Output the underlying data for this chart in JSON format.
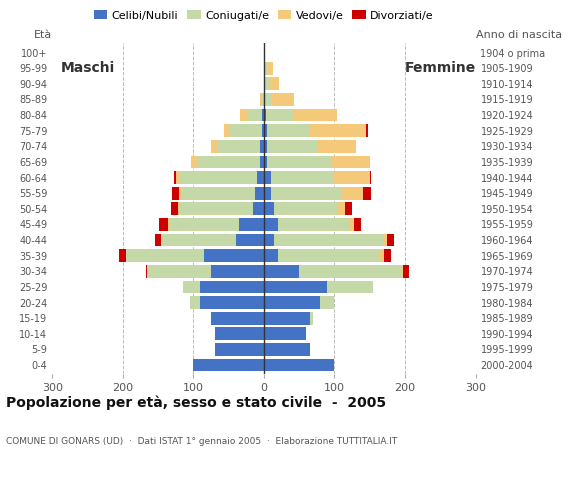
{
  "age_groups": [
    "0-4",
    "5-9",
    "10-14",
    "15-19",
    "20-24",
    "25-29",
    "30-34",
    "35-39",
    "40-44",
    "45-49",
    "50-54",
    "55-59",
    "60-64",
    "65-69",
    "70-74",
    "75-79",
    "80-84",
    "85-89",
    "90-94",
    "95-99",
    "100+"
  ],
  "birth_years": [
    "2000-2004",
    "1995-1999",
    "1990-1994",
    "1985-1989",
    "1980-1984",
    "1975-1979",
    "1970-1974",
    "1965-1969",
    "1960-1964",
    "1955-1959",
    "1950-1954",
    "1945-1949",
    "1940-1944",
    "1935-1939",
    "1930-1934",
    "1925-1929",
    "1920-1924",
    "1915-1919",
    "1910-1914",
    "1905-1909",
    "1904 o prima"
  ],
  "males": {
    "celibe": [
      100,
      70,
      70,
      75,
      90,
      90,
      75,
      85,
      40,
      35,
      15,
      12,
      10,
      5,
      5,
      3,
      2,
      0,
      0,
      0,
      0
    ],
    "coniugato": [
      0,
      0,
      0,
      0,
      15,
      25,
      90,
      110,
      105,
      100,
      105,
      105,
      110,
      90,
      60,
      45,
      20,
      3,
      0,
      0,
      0
    ],
    "vedovo": [
      0,
      0,
      0,
      0,
      0,
      0,
      0,
      1,
      1,
      1,
      2,
      3,
      5,
      8,
      10,
      8,
      12,
      2,
      0,
      0,
      0
    ],
    "divorziato": [
      0,
      0,
      0,
      0,
      0,
      0,
      2,
      10,
      8,
      12,
      10,
      10,
      2,
      0,
      0,
      0,
      0,
      0,
      0,
      0,
      0
    ]
  },
  "females": {
    "nubile": [
      100,
      65,
      60,
      65,
      80,
      90,
      50,
      20,
      15,
      20,
      15,
      10,
      10,
      5,
      5,
      5,
      3,
      2,
      2,
      0,
      0
    ],
    "coniugata": [
      0,
      0,
      0,
      5,
      20,
      65,
      145,
      145,
      155,
      100,
      90,
      100,
      90,
      90,
      70,
      60,
      40,
      10,
      5,
      5,
      0
    ],
    "vedova": [
      0,
      0,
      0,
      0,
      0,
      0,
      2,
      5,
      5,
      8,
      10,
      30,
      50,
      55,
      55,
      80,
      60,
      30,
      15,
      8,
      2
    ],
    "divorziata": [
      0,
      0,
      0,
      0,
      0,
      0,
      8,
      10,
      10,
      10,
      10,
      12,
      2,
      0,
      0,
      2,
      0,
      0,
      0,
      0,
      0
    ]
  },
  "colors": {
    "celibe": "#4472c4",
    "coniugato": "#c5d9a8",
    "vedovo": "#f5c97a",
    "divorziato": "#cc0000"
  },
  "xlim": 300,
  "title": "Popolazione per età, sesso e stato civile  -  2005",
  "subtitle": "COMUNE DI GONARS (UD)  ·  Dati ISTAT 1° gennaio 2005  ·  Elaborazione TUTTITALIA.IT",
  "legend_labels": [
    "Celibi/Nubili",
    "Coniugati/e",
    "Vedovi/e",
    "Divorziati/e"
  ],
  "background_color": "#ffffff",
  "bar_height": 0.82,
  "maschi_label": "Maschi",
  "femmine_label": "Femmine",
  "eta_label": "Età",
  "nascita_label": "Anno di nascita"
}
